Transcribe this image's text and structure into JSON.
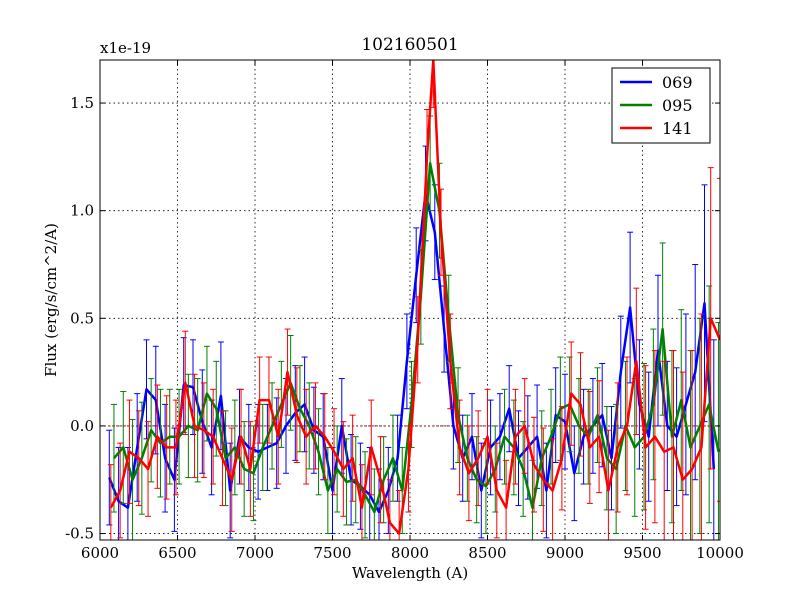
{
  "chart_data": {
    "type": "line",
    "title": "102160501",
    "xlabel": "Wavelength (A)",
    "ylabel": "Flux (erg/s/cm^2/A)",
    "y_multiplier": "x1e-19",
    "xlim": [
      6000,
      10000
    ],
    "ylim": [
      -0.53,
      1.7
    ],
    "x_ticks": [
      6000,
      6500,
      7000,
      7500,
      8000,
      8500,
      9000,
      9500,
      10000
    ],
    "y_ticks": [
      -0.5,
      0.0,
      0.5,
      1.0,
      1.5
    ],
    "x_tick_labels": [
      "6000",
      "6500",
      "7000",
      "7500",
      "8000",
      "8500",
      "9000",
      "9500",
      "10000"
    ],
    "y_tick_labels": [
      "-0.5",
      "0.0",
      "0.5",
      "1.0",
      "1.5"
    ],
    "grid": true,
    "legend_position": "top-right",
    "series": [
      {
        "name": "069",
        "color": "#0000ff",
        "x": [
          6060,
          6120,
          6180,
          6240,
          6300,
          6360,
          6420,
          6480,
          6540,
          6600,
          6660,
          6720,
          6780,
          6840,
          6900,
          6960,
          7020,
          7080,
          7140,
          7200,
          7260,
          7320,
          7380,
          7440,
          7500,
          7560,
          7620,
          7680,
          7740,
          7800,
          7860,
          7920,
          7980,
          8040,
          8100,
          8160,
          8220,
          8280,
          8340,
          8400,
          8460,
          8520,
          8580,
          8640,
          8700,
          8760,
          8820,
          8880,
          8940,
          9000,
          9060,
          9120,
          9180,
          9240,
          9300,
          9360,
          9420,
          9480,
          9540,
          9600,
          9660,
          9720,
          9780,
          9840,
          9900,
          9960
        ],
        "values": [
          -0.24,
          -0.35,
          -0.38,
          -0.1,
          0.17,
          0.12,
          -0.15,
          -0.25,
          0.19,
          0.18,
          0.02,
          -0.1,
          0.14,
          -0.3,
          -0.05,
          -0.1,
          -0.12,
          -0.1,
          -0.08,
          0.0,
          0.06,
          0.1,
          -0.02,
          -0.05,
          -0.3,
          0.0,
          -0.25,
          -0.28,
          -0.32,
          -0.4,
          -0.3,
          -0.15,
          0.3,
          0.7,
          1.08,
          0.9,
          0.45,
          0.0,
          -0.15,
          -0.05,
          -0.3,
          -0.1,
          -0.05,
          0.08,
          -0.15,
          -0.1,
          -0.05,
          -0.3,
          0.05,
          0.02,
          -0.22,
          -0.05,
          0.0,
          0.05,
          -0.15,
          0.25,
          0.55,
          0.1,
          -0.05,
          0.35,
          0.0,
          -0.05,
          0.1,
          0.25,
          0.57,
          -0.2
        ],
        "errors": [
          0.22,
          0.25,
          0.28,
          0.25,
          0.23,
          0.25,
          0.25,
          0.24,
          0.22,
          0.22,
          0.24,
          0.22,
          0.25,
          0.22,
          0.22,
          0.2,
          0.22,
          0.2,
          0.21,
          0.22,
          0.22,
          0.22,
          0.2,
          0.2,
          0.2,
          0.22,
          0.21,
          0.2,
          0.22,
          0.2,
          0.2,
          0.2,
          0.22,
          0.22,
          0.22,
          0.22,
          0.2,
          0.2,
          0.2,
          0.2,
          0.22,
          0.22,
          0.2,
          0.2,
          0.22,
          0.24,
          0.24,
          0.22,
          0.22,
          0.22,
          0.22,
          0.22,
          0.22,
          0.24,
          0.24,
          0.26,
          0.35,
          0.3,
          0.3,
          0.35,
          0.3,
          0.32,
          0.42,
          0.5,
          0.55,
          0.6
        ]
      },
      {
        "name": "095",
        "color": "#008000",
        "x": [
          6090,
          6150,
          6210,
          6270,
          6330,
          6390,
          6450,
          6510,
          6570,
          6630,
          6690,
          6750,
          6810,
          6870,
          6930,
          6990,
          7050,
          7110,
          7170,
          7230,
          7290,
          7350,
          7410,
          7470,
          7530,
          7590,
          7650,
          7710,
          7770,
          7830,
          7890,
          7950,
          8010,
          8070,
          8130,
          8190,
          8250,
          8310,
          8370,
          8430,
          8490,
          8550,
          8610,
          8670,
          8730,
          8790,
          8850,
          8910,
          8970,
          9030,
          9090,
          9150,
          9210,
          9270,
          9330,
          9390,
          9450,
          9510,
          9570,
          9630,
          9690,
          9750,
          9810,
          9870,
          9930,
          9990
        ],
        "values": [
          -0.15,
          -0.1,
          -0.25,
          -0.15,
          -0.02,
          -0.08,
          -0.05,
          -0.05,
          0.0,
          -0.02,
          0.15,
          0.08,
          -0.15,
          -0.1,
          -0.2,
          -0.22,
          -0.1,
          0.0,
          0.1,
          0.2,
          0.08,
          0.0,
          -0.12,
          -0.3,
          -0.2,
          -0.26,
          -0.25,
          -0.32,
          -0.4,
          -0.25,
          -0.15,
          -0.3,
          0.1,
          0.6,
          1.22,
          1.0,
          0.5,
          0.05,
          -0.15,
          -0.25,
          -0.28,
          -0.2,
          -0.05,
          -0.1,
          -0.2,
          -0.38,
          -0.15,
          -0.05,
          0.08,
          0.1,
          0.0,
          -0.05,
          0.05,
          -0.15,
          -0.2,
          0.0,
          -0.1,
          -0.05,
          0.1,
          0.45,
          -0.05,
          0.12,
          -0.1,
          0.0,
          0.1,
          -0.12
        ],
        "errors": [
          0.25,
          0.26,
          0.28,
          0.26,
          0.24,
          0.25,
          0.22,
          0.22,
          0.24,
          0.24,
          0.22,
          0.22,
          0.22,
          0.22,
          0.22,
          0.22,
          0.2,
          0.2,
          0.2,
          0.22,
          0.2,
          0.2,
          0.2,
          0.2,
          0.2,
          0.2,
          0.2,
          0.2,
          0.2,
          0.2,
          0.2,
          0.2,
          0.2,
          0.22,
          0.22,
          0.22,
          0.2,
          0.22,
          0.2,
          0.2,
          0.22,
          0.2,
          0.22,
          0.22,
          0.22,
          0.22,
          0.22,
          0.22,
          0.24,
          0.22,
          0.22,
          0.22,
          0.22,
          0.24,
          0.3,
          0.3,
          0.32,
          0.34,
          0.35,
          0.4,
          0.4,
          0.42,
          0.45,
          0.5,
          0.55,
          0.6
        ]
      },
      {
        "name": "141",
        "color": "#ff0000",
        "x": [
          6070,
          6130,
          6190,
          6250,
          6310,
          6370,
          6430,
          6490,
          6550,
          6610,
          6670,
          6730,
          6790,
          6850,
          6910,
          6970,
          7030,
          7090,
          7150,
          7210,
          7270,
          7330,
          7390,
          7450,
          7510,
          7570,
          7630,
          7690,
          7750,
          7810,
          7870,
          7930,
          7990,
          8050,
          8110,
          8150,
          8200,
          8260,
          8320,
          8380,
          8440,
          8500,
          8560,
          8620,
          8680,
          8740,
          8800,
          8860,
          8920,
          8980,
          9040,
          9100,
          9160,
          9220,
          9280,
          9340,
          9400,
          9460,
          9520,
          9580,
          9640,
          9700,
          9760,
          9820,
          9880,
          9940,
          10000
        ],
        "values": [
          -0.38,
          -0.3,
          -0.12,
          -0.15,
          -0.2,
          -0.05,
          -0.1,
          -0.1,
          0.2,
          0.0,
          -0.02,
          -0.05,
          -0.15,
          -0.25,
          -0.05,
          -0.2,
          0.12,
          0.12,
          -0.05,
          0.25,
          0.05,
          -0.05,
          0.0,
          -0.05,
          -0.12,
          -0.2,
          -0.15,
          -0.38,
          -0.1,
          -0.25,
          -0.45,
          -0.5,
          -0.2,
          0.4,
          1.25,
          1.7,
          0.9,
          0.3,
          -0.1,
          -0.22,
          -0.15,
          -0.05,
          -0.3,
          -0.38,
          -0.05,
          0.0,
          -0.18,
          -0.25,
          -0.3,
          -0.15,
          0.15,
          0.1,
          -0.1,
          -0.05,
          -0.3,
          -0.1,
          0.0,
          0.3,
          -0.1,
          -0.05,
          -0.12,
          -0.1,
          -0.25,
          -0.2,
          -0.1,
          0.5,
          0.4
        ],
        "errors": [
          0.2,
          0.22,
          0.24,
          0.22,
          0.22,
          0.24,
          0.24,
          0.22,
          0.24,
          0.24,
          0.22,
          0.22,
          0.22,
          0.24,
          0.22,
          0.22,
          0.2,
          0.2,
          0.22,
          0.2,
          0.22,
          0.22,
          0.2,
          0.2,
          0.2,
          0.22,
          0.2,
          0.2,
          0.22,
          0.2,
          0.2,
          0.2,
          0.2,
          0.2,
          0.22,
          0.22,
          0.2,
          0.22,
          0.22,
          0.22,
          0.22,
          0.22,
          0.22,
          0.22,
          0.22,
          0.22,
          0.22,
          0.24,
          0.24,
          0.24,
          0.24,
          0.24,
          0.26,
          0.26,
          0.28,
          0.3,
          0.32,
          0.34,
          0.38,
          0.4,
          0.42,
          0.45,
          0.5,
          0.55,
          0.62,
          0.7,
          0.75
        ]
      }
    ]
  }
}
